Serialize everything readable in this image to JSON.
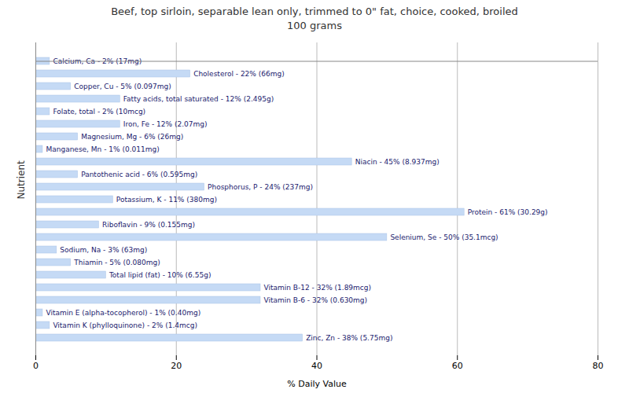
{
  "chart_data": {
    "type": "bar",
    "orientation": "horizontal",
    "title": "Beef, top sirloin, separable lean only, trimmed to 0\" fat, choice, cooked, broiled\n100 grams",
    "xlabel": "% Daily Value",
    "ylabel": "Nutrient",
    "categories": [
      "Calcium, Ca - 2% (17mg)",
      "Cholesterol - 22% (66mg)",
      "Copper, Cu - 5% (0.097mg)",
      "Fatty acids, total saturated - 12% (2.495g)",
      "Folate, total - 2% (10mcg)",
      "Iron, Fe - 12% (2.07mg)",
      "Magnesium, Mg - 6% (26mg)",
      "Manganese, Mn - 1% (0.011mg)",
      "Niacin - 45% (8.937mg)",
      "Pantothenic acid - 6% (0.595mg)",
      "Phosphorus, P - 24% (237mg)",
      "Potassium, K - 11% (380mg)",
      "Protein - 61% (30.29g)",
      "Riboflavin - 9% (0.155mg)",
      "Selenium, Se - 50% (35.1mcg)",
      "Sodium, Na - 3% (63mg)",
      "Thiamin - 5% (0.080mg)",
      "Total lipid (fat) - 10% (6.55g)",
      "Vitamin B-12 - 32% (1.89mcg)",
      "Vitamin B-6 - 32% (0.630mg)",
      "Vitamin E (alpha-tocopherol) - 1% (0.40mg)",
      "Vitamin K (phylloquinone) - 2% (1.4mcg)",
      "Zinc, Zn - 38% (5.75mg)"
    ],
    "values": [
      2,
      22,
      5,
      12,
      2,
      12,
      6,
      1,
      45,
      6,
      24,
      11,
      61,
      9,
      50,
      3,
      5,
      10,
      32,
      32,
      1,
      2,
      38
    ],
    "color": "#c5daf5",
    "xlim": [
      0,
      80
    ],
    "xticks": [
      0,
      20,
      40,
      60,
      80
    ],
    "grid": true,
    "tick_labels": "x"
  }
}
